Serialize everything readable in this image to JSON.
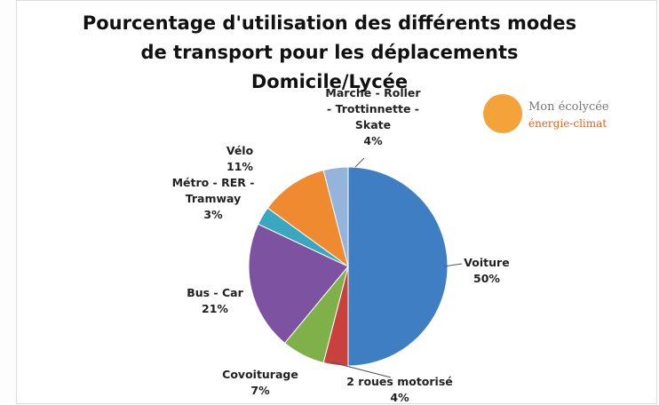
{
  "chart_data": {
    "type": "pie",
    "title": "Pourcentage d'utilisation des différents modes de transport pour les déplacements Domicile/Lycée",
    "categories": [
      "Voiture",
      "2 roues motorisé",
      "Covoiturage",
      "Bus - Car",
      "Métro - RER - Tramway",
      "Vélo",
      "Marche - Roller - Trottinnette - Skate"
    ],
    "values": [
      50,
      4,
      7,
      21,
      3,
      11,
      4
    ],
    "value_labels": [
      "50%",
      "4%",
      "7%",
      "21%",
      "3%",
      "11%",
      "4%"
    ],
    "colors": [
      "#3f7ec2",
      "#c9413c",
      "#7fb04a",
      "#7d52a0",
      "#3aa6c0",
      "#f08a31",
      "#95b4dc"
    ]
  },
  "logo": {
    "line1": "Mon écolycée",
    "line2": "énergie-climat"
  }
}
